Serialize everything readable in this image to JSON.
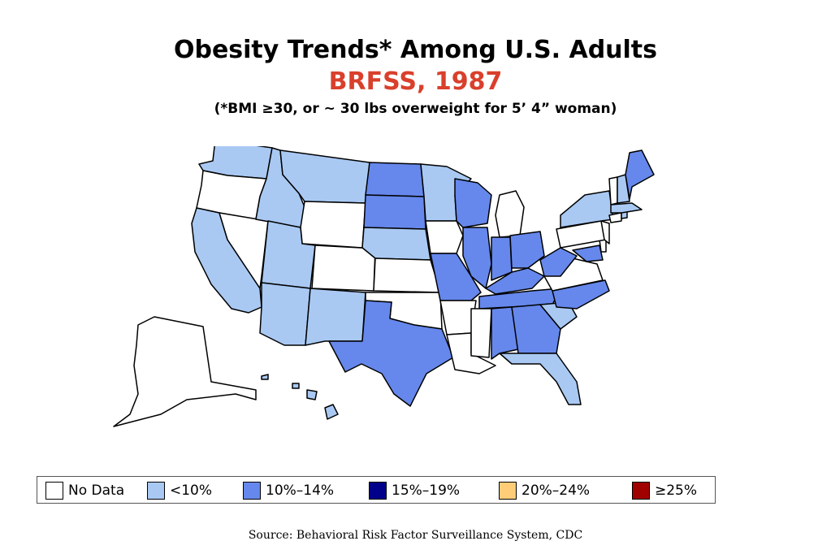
{
  "header": {
    "title": "Obesity Trends* Among U.S. Adults",
    "subtitle": "BRFSS, 1987",
    "note": "(*BMI ≥30, or ~ 30 lbs overweight for 5’ 4” woman)"
  },
  "colors": {
    "no_data": "#ffffff",
    "lt10": "#a9c9f3",
    "p10_14": "#6688ec",
    "p15_19": "#00008b",
    "p20_24": "#ffcc77",
    "ge25": "#a00000",
    "title_red": "#d9402c"
  },
  "legend": [
    {
      "label": "No Data",
      "color": "#ffffff"
    },
    {
      "label": "<10%",
      "color": "#a9c9f3"
    },
    {
      "label": "10%–14%",
      "color": "#6688ec"
    },
    {
      "label": "15%–19%",
      "color": "#00008b"
    },
    {
      "label": "20%–24%",
      "color": "#ffcc77"
    },
    {
      "label": "≥25%",
      "color": "#a00000"
    }
  ],
  "states": {
    "no_data": [
      "OR",
      "NV",
      "WY",
      "CO",
      "KS",
      "OK",
      "AR",
      "IA",
      "MI",
      "LA",
      "MS",
      "VA",
      "PA",
      "VT",
      "NJ",
      "CT",
      "DE",
      "AK"
    ],
    "lt10": [
      "WA",
      "CA",
      "ID",
      "MT",
      "UT",
      "AZ",
      "NM",
      "NE",
      "MN",
      "NY",
      "NH",
      "MA",
      "SC",
      "FL",
      "HI",
      "RI"
    ],
    "p10_14": [
      "ND",
      "SD",
      "TX",
      "MO",
      "WI",
      "IL",
      "IN",
      "OH",
      "KY",
      "TN",
      "WV",
      "NC",
      "AL",
      "GA",
      "ME",
      "MD"
    ]
  },
  "source": "Source: Behavioral Risk Factor Surveillance System, CDC"
}
